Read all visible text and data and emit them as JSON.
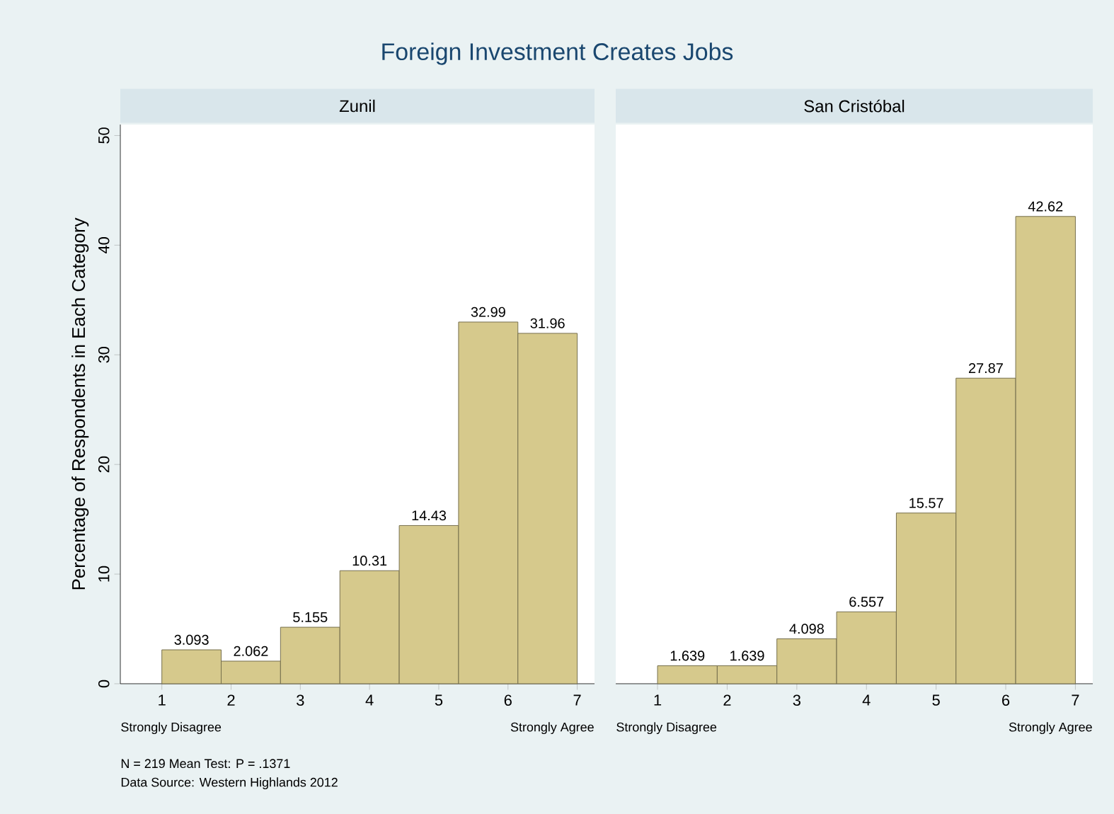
{
  "chart_data": [
    {
      "type": "histogram",
      "title": "Foreign Investment Creates Jobs",
      "subtitle": "Zunil",
      "ylabel": "Percentage of Respondents in Each Category",
      "bins": [
        1,
        1.857,
        2.714,
        3.571,
        4.429,
        5.286,
        6.143,
        7
      ],
      "values": [
        3.093,
        2.062,
        5.155,
        10.31,
        14.43,
        32.99,
        31.96
      ],
      "color": "#d6c98c",
      "data_labels": true,
      "xlim": [
        0.4,
        7.25
      ],
      "xticks": [
        1,
        2,
        3,
        4,
        5,
        6,
        7
      ],
      "ylim": [
        0,
        51
      ],
      "yticks": [
        0,
        10,
        20,
        30,
        40,
        50
      ],
      "annotations": [
        "Strongly Disagree",
        "Strongly Agree",
        "N = 219  Mean Test: P = .1371",
        "Data Source: Western Highlands 2012"
      ]
    },
    {
      "type": "histogram",
      "subtitle": "San Cristóbal",
      "bins": [
        1,
        1.857,
        2.714,
        3.571,
        4.429,
        5.286,
        6.143,
        7
      ],
      "values": [
        1.639,
        1.639,
        4.098,
        6.557,
        15.57,
        27.87,
        42.62
      ],
      "color": "#d6c98c",
      "data_labels": true,
      "xlim": [
        0.4,
        7.25
      ],
      "xticks": [
        1,
        2,
        3,
        4,
        5,
        6,
        7
      ],
      "ylim": [
        0,
        51
      ],
      "yticks": [
        0,
        10,
        20,
        30,
        40,
        50
      ],
      "tick_labels": "x",
      "annotations": [
        "Strongly Disagree",
        "Strongly Agree"
      ]
    }
  ]
}
